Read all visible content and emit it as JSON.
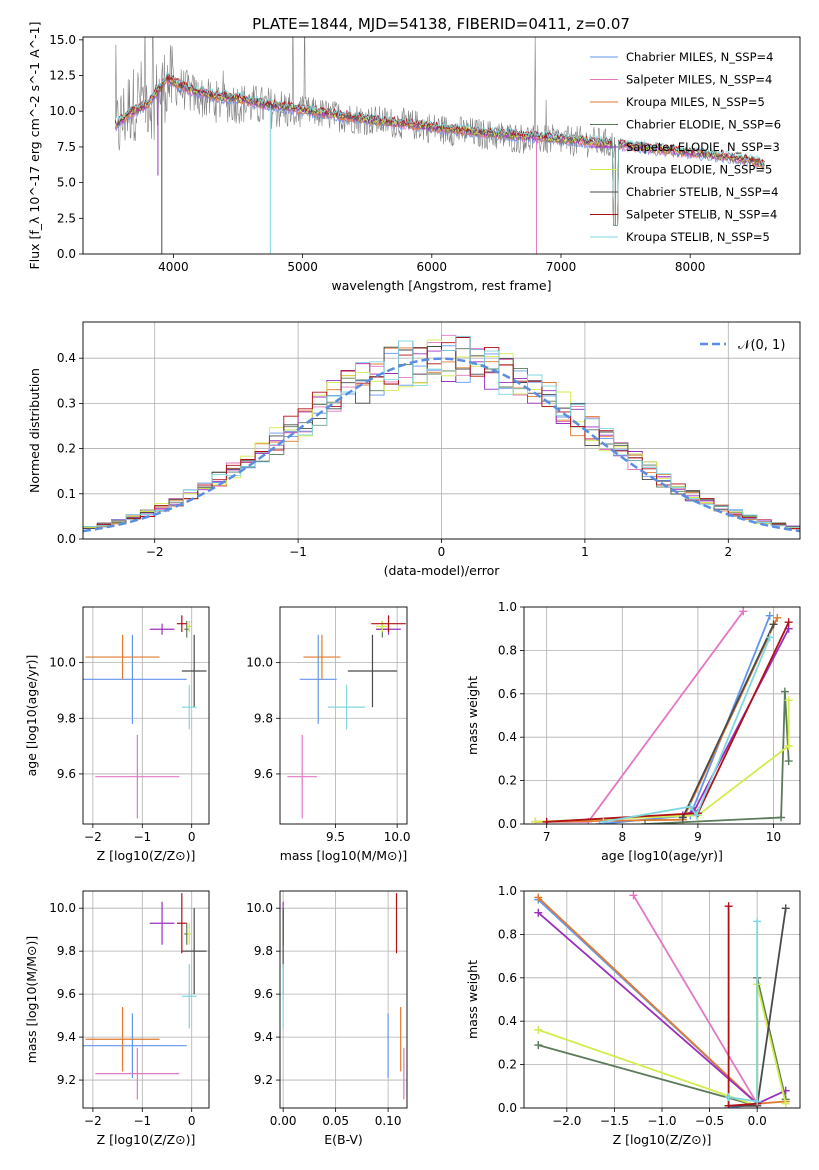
{
  "figure": {
    "title": "PLATE=1844, MJD=54138, FIBERID=0411, z=0.07"
  },
  "chart_data": [
    {
      "id": "spectrum",
      "type": "line",
      "xlabel": "wavelength [Angstrom, rest frame]",
      "ylabel": "Flux [f_λ 10^-17 erg cm^-2 s^-1 A^-1]",
      "xlim": [
        3300,
        8850
      ],
      "ylim": [
        0,
        15.2
      ],
      "xticks": [
        4000,
        5000,
        6000,
        7000,
        8000
      ],
      "yticks": [
        0.0,
        2.5,
        5.0,
        7.5,
        10.0,
        12.5,
        15.0
      ],
      "grid": false,
      "legend_position": "top-right",
      "data_color": "#808080",
      "data_trend": [
        [
          3550,
          8.4
        ],
        [
          3650,
          10.2
        ],
        [
          3750,
          11.0
        ],
        [
          3850,
          10.7
        ],
        [
          3950,
          12.1
        ],
        [
          4050,
          11.7
        ],
        [
          4150,
          11.2
        ],
        [
          4300,
          10.7
        ],
        [
          4500,
          10.6
        ],
        [
          4700,
          10.3
        ],
        [
          4900,
          10.1
        ],
        [
          5100,
          9.9
        ],
        [
          5300,
          9.6
        ],
        [
          5500,
          9.4
        ],
        [
          5700,
          9.2
        ],
        [
          5900,
          9.0
        ],
        [
          6100,
          8.7
        ],
        [
          6300,
          8.5
        ],
        [
          6500,
          8.3
        ],
        [
          6700,
          8.1
        ],
        [
          6900,
          8.0
        ],
        [
          7100,
          7.9
        ],
        [
          7300,
          7.8
        ],
        [
          7420,
          7.6
        ]
      ],
      "models": [
        {
          "name": "Chabrier MILES, N_SSP=4",
          "color": "#6495ed"
        },
        {
          "name": "Salpeter MILES, N_SSP=4",
          "color": "#e377c2"
        },
        {
          "name": "Kroupa MILES, N_SSP=5",
          "color": "#e07b30"
        },
        {
          "name": "Chabrier ELODIE, N_SSP=6",
          "color": "#5b7b5b"
        },
        {
          "name": "Salpeter ELODIE, N_SSP=3",
          "color": "#9b30c0"
        },
        {
          "name": "Kroupa ELODIE, N_SSP=5",
          "color": "#d4ec4c"
        },
        {
          "name": "Chabrier STELIB, N_SSP=4",
          "color": "#4a4a4a"
        },
        {
          "name": "Salpeter STELIB, N_SSP=4",
          "color": "#b01018"
        },
        {
          "name": "Kroupa STELIB, N_SSP=5",
          "color": "#7fd8e0"
        }
      ],
      "model_trend": [
        [
          3550,
          9.0
        ],
        [
          3650,
          9.8
        ],
        [
          3800,
          10.5
        ],
        [
          3950,
          12.3
        ],
        [
          4100,
          11.6
        ],
        [
          4300,
          11.1
        ],
        [
          4500,
          10.9
        ],
        [
          4700,
          10.5
        ],
        [
          5000,
          10.1
        ],
        [
          5300,
          9.7
        ],
        [
          5600,
          9.3
        ],
        [
          6000,
          8.9
        ],
        [
          6400,
          8.5
        ],
        [
          6800,
          8.2
        ],
        [
          7200,
          7.9
        ],
        [
          7500,
          7.6
        ],
        [
          7800,
          7.3
        ],
        [
          8100,
          7.0
        ],
        [
          8300,
          6.8
        ],
        [
          8500,
          6.5
        ],
        [
          8580,
          6.2
        ]
      ],
      "dropouts": [
        [
          3880,
          5.5
        ],
        [
          3910,
          0
        ],
        [
          4750,
          0
        ],
        [
          6810,
          0
        ],
        [
          7420,
          2
        ]
      ]
    },
    {
      "id": "residuals",
      "type": "bar",
      "xlabel": "(data-model)/error",
      "ylabel": "Normed distribution",
      "xlim": [
        -2.5,
        2.5
      ],
      "ylim": [
        0,
        0.48
      ],
      "xticks": [
        -2,
        -1,
        0,
        1,
        2
      ],
      "yticks": [
        0.0,
        0.1,
        0.2,
        0.3,
        0.4
      ],
      "grid": true,
      "legend_position": "top-right",
      "reference_label": "𝒩(0, 1)",
      "reference_color": "#5b8ee0",
      "bin_width": 0.1,
      "series_colors": [
        "#6495ed",
        "#e377c2",
        "#e07b30",
        "#5b7b5b",
        "#9b30c0",
        "#d4ec4c",
        "#4a4a4a",
        "#b01018",
        "#7fd8e0"
      ]
    },
    {
      "id": "age_vs_Z",
      "type": "scatter",
      "xlabel": "Z [log10(Z/Z⊙)]",
      "ylabel": "age  [log10(age/yr)]",
      "xlim": [
        -2.2,
        0.35
      ],
      "ylim": [
        9.42,
        10.2
      ],
      "xticks": [
        -2,
        -1,
        0
      ],
      "yticks": [
        9.6,
        9.8,
        10.0
      ],
      "grid": true,
      "points": [
        {
          "color": "#6495ed",
          "x": -1.2,
          "xerr": 1.1,
          "y": 9.94,
          "yerr": 0.16
        },
        {
          "color": "#e377c2",
          "x": -1.1,
          "xerr": 0.85,
          "y": 9.59,
          "yerr": 0.15
        },
        {
          "color": "#e07b30",
          "x": -1.4,
          "xerr": 0.75,
          "y": 10.02,
          "yerr": 0.08
        },
        {
          "color": "#5b7b5b",
          "x": -0.1,
          "xerr": 0.05,
          "y": 10.12,
          "yerr": 0.03
        },
        {
          "color": "#9b30c0",
          "x": -0.6,
          "xerr": 0.25,
          "y": 10.12,
          "yerr": 0.02
        },
        {
          "color": "#d4ec4c",
          "x": -0.05,
          "xerr": 0.04,
          "y": 10.13,
          "yerr": 0.02
        },
        {
          "color": "#4a4a4a",
          "x": 0.05,
          "xerr": 0.25,
          "y": 9.97,
          "yerr": 0.13
        },
        {
          "color": "#b01018",
          "x": -0.2,
          "xerr": 0.1,
          "y": 10.14,
          "yerr": 0.03
        },
        {
          "color": "#7fd8e0",
          "x": -0.05,
          "xerr": 0.15,
          "y": 9.84,
          "yerr": 0.08
        }
      ]
    },
    {
      "id": "age_vs_mass",
      "type": "scatter",
      "xlabel": "mass [log10(M/M⊙)]",
      "ylabel": "",
      "xlim": [
        9.05,
        10.08
      ],
      "ylim": [
        9.42,
        10.2
      ],
      "xticks": [
        9.5,
        10.0
      ],
      "yticks": [
        9.6,
        9.8,
        10.0
      ],
      "grid": true,
      "points": [
        {
          "color": "#6495ed",
          "x": 9.36,
          "xerr": 0.15,
          "y": 9.94,
          "yerr": 0.16
        },
        {
          "color": "#e377c2",
          "x": 9.23,
          "xerr": 0.12,
          "y": 9.59,
          "yerr": 0.15
        },
        {
          "color": "#e07b30",
          "x": 9.39,
          "xerr": 0.15,
          "y": 10.02,
          "yerr": 0.08
        },
        {
          "color": "#5b7b5b",
          "x": 9.88,
          "xerr": 0.05,
          "y": 10.12,
          "yerr": 0.03
        },
        {
          "color": "#9b30c0",
          "x": 9.93,
          "xerr": 0.1,
          "y": 10.12,
          "yerr": 0.02
        },
        {
          "color": "#d4ec4c",
          "x": 9.88,
          "xerr": 0.05,
          "y": 10.13,
          "yerr": 0.02
        },
        {
          "color": "#4a4a4a",
          "x": 9.8,
          "xerr": 0.2,
          "y": 9.97,
          "yerr": 0.13
        },
        {
          "color": "#b01018",
          "x": 9.93,
          "xerr": 0.14,
          "y": 10.14,
          "yerr": 0.03
        },
        {
          "color": "#7fd8e0",
          "x": 9.59,
          "xerr": 0.15,
          "y": 9.84,
          "yerr": 0.08
        }
      ]
    },
    {
      "id": "massweight_vs_age",
      "type": "line",
      "xlabel": "age  [log10(age/yr)]",
      "ylabel": "mass weight",
      "xlim": [
        6.7,
        10.35
      ],
      "ylim": [
        0,
        1
      ],
      "xticks": [
        7,
        8,
        9,
        10
      ],
      "yticks": [
        0.0,
        0.2,
        0.4,
        0.6,
        0.8,
        1.0
      ],
      "grid": true,
      "series": [
        {
          "color": "#6495ed",
          "points": [
            [
              7.7,
              0
            ],
            [
              8.9,
              0.04
            ],
            [
              9.95,
              0.96
            ]
          ]
        },
        {
          "color": "#e377c2",
          "points": [
            [
              6.85,
              0.01
            ],
            [
              7.55,
              0.01
            ],
            [
              9.6,
              0.98
            ]
          ]
        },
        {
          "color": "#e07b30",
          "points": [
            [
              6.85,
              0.01
            ],
            [
              8.8,
              0.02
            ],
            [
              10.05,
              0.95
            ]
          ]
        },
        {
          "color": "#5b7b5b",
          "points": [
            [
              8.3,
              0
            ],
            [
              10.1,
              0.03
            ],
            [
              10.15,
              0.61
            ],
            [
              10.2,
              0.29
            ]
          ]
        },
        {
          "color": "#9b30c0",
          "points": [
            [
              8.8,
              0.04
            ],
            [
              8.95,
              0.06
            ],
            [
              10.2,
              0.9
            ]
          ]
        },
        {
          "color": "#d4ec4c",
          "points": [
            [
              6.85,
              0.01
            ],
            [
              9.0,
              0.04
            ],
            [
              10.2,
              0.36
            ],
            [
              10.2,
              0.57
            ]
          ]
        },
        {
          "color": "#4a4a4a",
          "points": [
            [
              8.8,
              0.03
            ],
            [
              10.0,
              0.92
            ]
          ]
        },
        {
          "color": "#b01018",
          "points": [
            [
              7.0,
              0.01
            ],
            [
              9.0,
              0.05
            ],
            [
              10.2,
              0.93
            ]
          ]
        },
        {
          "color": "#7fd8e0",
          "points": [
            [
              7.75,
              0.01
            ],
            [
              8.9,
              0.08
            ],
            [
              8.98,
              0.04
            ],
            [
              9.95,
              0.86
            ]
          ]
        }
      ]
    },
    {
      "id": "mass_vs_Z",
      "type": "scatter",
      "xlabel": "Z [log10(Z/Z⊙)]",
      "ylabel": "mass [log10(M/M⊙)]",
      "xlim": [
        -2.2,
        0.35
      ],
      "ylim": [
        9.07,
        10.08
      ],
      "xticks": [
        -2,
        -1,
        0
      ],
      "yticks": [
        9.2,
        9.4,
        9.6,
        9.8,
        10.0
      ],
      "grid": true,
      "points": [
        {
          "color": "#6495ed",
          "x": -1.2,
          "xerr": 1.1,
          "y": 9.36,
          "yerr": 0.15
        },
        {
          "color": "#e377c2",
          "x": -1.1,
          "xerr": 0.85,
          "y": 9.23,
          "yerr": 0.12
        },
        {
          "color": "#e07b30",
          "x": -1.4,
          "xerr": 0.75,
          "y": 9.39,
          "yerr": 0.15
        },
        {
          "color": "#5b7b5b",
          "x": -0.1,
          "xerr": 0.05,
          "y": 9.88,
          "yerr": 0.05
        },
        {
          "color": "#9b30c0",
          "x": -0.6,
          "xerr": 0.25,
          "y": 9.93,
          "yerr": 0.1
        },
        {
          "color": "#d4ec4c",
          "x": -0.05,
          "xerr": 0.04,
          "y": 9.88,
          "yerr": 0.05
        },
        {
          "color": "#4a4a4a",
          "x": 0.05,
          "xerr": 0.25,
          "y": 9.8,
          "yerr": 0.2
        },
        {
          "color": "#b01018",
          "x": -0.2,
          "xerr": 0.1,
          "y": 9.93,
          "yerr": 0.14
        },
        {
          "color": "#7fd8e0",
          "x": -0.05,
          "xerr": 0.15,
          "y": 9.59,
          "yerr": 0.15
        }
      ]
    },
    {
      "id": "mass_vs_ebv",
      "type": "scatter",
      "xlabel": "E(B-V)",
      "ylabel": "",
      "xlim": [
        -0.003,
        0.118
      ],
      "ylim": [
        9.07,
        10.08
      ],
      "xticks": [
        0.0,
        0.05,
        0.1
      ],
      "yticks": [
        9.2,
        9.4,
        9.6,
        9.8,
        10.0
      ],
      "grid": true,
      "points": [
        {
          "color": "#6495ed",
          "x": 0.1,
          "y": 9.36,
          "yerr": 0.15
        },
        {
          "color": "#e377c2",
          "x": 0.115,
          "y": 9.23,
          "yerr": 0.12
        },
        {
          "color": "#e07b30",
          "x": 0.112,
          "y": 9.39,
          "yerr": 0.15
        },
        {
          "color": "#5b7b5b",
          "x": 0.0,
          "y": 9.88,
          "yerr": 0.05
        },
        {
          "color": "#9b30c0",
          "x": 0.0,
          "y": 9.93,
          "yerr": 0.1
        },
        {
          "color": "#d4ec4c",
          "x": 0.0,
          "y": 9.88,
          "yerr": 0.05
        },
        {
          "color": "#4a4a4a",
          "x": 0.0,
          "y": 9.8,
          "yerr": 0.2
        },
        {
          "color": "#b01018",
          "x": 0.108,
          "y": 9.93,
          "yerr": 0.14
        },
        {
          "color": "#7fd8e0",
          "x": 0.0,
          "y": 9.59,
          "yerr": 0.15
        }
      ]
    },
    {
      "id": "massweight_vs_Z",
      "type": "line",
      "xlabel": "Z [log10(Z/Z⊙)]",
      "ylabel": "mass weight",
      "xlim": [
        -2.45,
        0.45
      ],
      "ylim": [
        0,
        1
      ],
      "xticks": [
        -2.0,
        -1.5,
        -1.0,
        -0.5,
        0.0
      ],
      "yticks": [
        0.0,
        0.2,
        0.4,
        0.6,
        0.8,
        1.0
      ],
      "grid": true,
      "series": [
        {
          "color": "#6495ed",
          "points": [
            [
              -2.3,
              0.96
            ],
            [
              0,
              0.02
            ],
            [
              -0.3,
              0
            ]
          ]
        },
        {
          "color": "#e377c2",
          "points": [
            [
              -1.3,
              0.98
            ],
            [
              0,
              0.02
            ]
          ]
        },
        {
          "color": "#e07b30",
          "points": [
            [
              -2.3,
              0.97
            ],
            [
              0,
              0.02
            ],
            [
              0.3,
              0.03
            ]
          ]
        },
        {
          "color": "#5b7b5b",
          "points": [
            [
              -2.3,
              0.29
            ],
            [
              0,
              0.01
            ],
            [
              0,
              0.6
            ],
            [
              0.3,
              0.04
            ]
          ]
        },
        {
          "color": "#9b30c0",
          "points": [
            [
              -2.3,
              0.9
            ],
            [
              0,
              0.02
            ],
            [
              0.3,
              0.08
            ]
          ]
        },
        {
          "color": "#d4ec4c",
          "points": [
            [
              -2.3,
              0.36
            ],
            [
              0,
              0.01
            ],
            [
              0,
              0.57
            ],
            [
              0.3,
              0.02
            ]
          ]
        },
        {
          "color": "#4a4a4a",
          "points": [
            [
              -0.3,
              0.01
            ],
            [
              0,
              0.01
            ],
            [
              0.3,
              0.92
            ]
          ]
        },
        {
          "color": "#b01018",
          "points": [
            [
              -0.3,
              0.93
            ],
            [
              -0.3,
              0.01
            ],
            [
              0,
              0.02
            ]
          ]
        },
        {
          "color": "#7fd8e0",
          "points": [
            [
              0,
              0.86
            ],
            [
              0,
              0.03
            ],
            [
              -0.3,
              0.05
            ]
          ]
        }
      ]
    }
  ]
}
